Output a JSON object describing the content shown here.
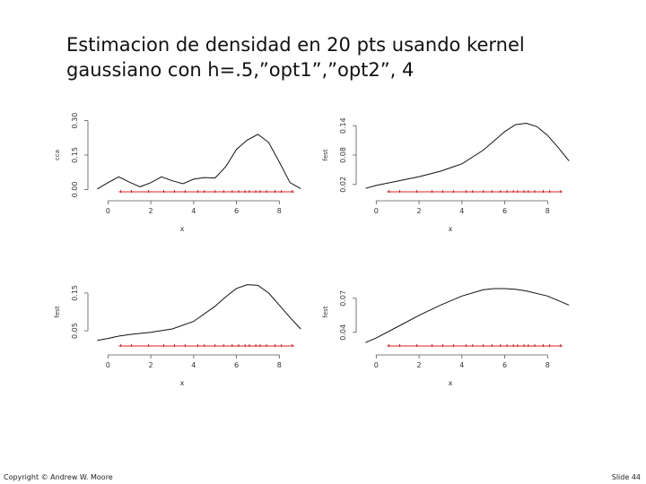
{
  "title": {
    "line1": "Estimacion de densidad en 20 pts usando kernel",
    "line2": "gaussiano con h=.5,”opt1”,”opt2”, 4"
  },
  "footer": {
    "copyright": "Copyright © Andrew W. Moore",
    "slide": "Slide 44"
  },
  "chart_data": [
    {
      "type": "line",
      "title": "",
      "xlabel": "x",
      "ylabel": "cca",
      "xlim": [
        -0.6,
        9.2
      ],
      "ylim": [
        -0.01,
        0.31
      ],
      "xticks": [
        0,
        2,
        4,
        6,
        8
      ],
      "yticks": [
        0.0,
        0.15,
        0.3
      ],
      "ytick_labels": [
        "0.00",
        "0.15",
        "0.30"
      ],
      "x": [
        -0.5,
        0.0,
        0.5,
        1.0,
        1.5,
        2.0,
        2.5,
        3.0,
        3.5,
        4.0,
        4.5,
        5.0,
        5.5,
        6.0,
        6.5,
        7.0,
        7.5,
        8.0,
        8.5,
        9.0
      ],
      "y": [
        0.002,
        0.03,
        0.055,
        0.032,
        0.012,
        0.03,
        0.055,
        0.038,
        0.025,
        0.045,
        0.052,
        0.05,
        0.1,
        0.175,
        0.215,
        0.24,
        0.205,
        0.12,
        0.03,
        0.004
      ],
      "rug": [
        0.6,
        1.1,
        1.9,
        2.6,
        3.1,
        3.6,
        4.2,
        4.5,
        5.0,
        5.4,
        5.8,
        6.1,
        6.4,
        6.6,
        6.9,
        7.1,
        7.4,
        7.8,
        8.1,
        8.6
      ],
      "rug_span": [
        0.5,
        8.7
      ]
    },
    {
      "type": "line",
      "title": "",
      "xlabel": "x",
      "ylabel": "fest",
      "xlim": [
        -0.6,
        9.2
      ],
      "ylim": [
        0.005,
        0.155
      ],
      "xticks": [
        0,
        2,
        4,
        6,
        8
      ],
      "yticks": [
        0.02,
        0.08,
        0.14
      ],
      "ytick_labels": [
        "0.02",
        "0.08",
        "0.14"
      ],
      "x": [
        -0.5,
        0.0,
        1.0,
        2.0,
        3.0,
        4.0,
        5.0,
        6.0,
        6.5,
        7.0,
        7.5,
        8.0,
        8.5,
        9.0
      ],
      "y": [
        0.012,
        0.018,
        0.027,
        0.036,
        0.047,
        0.062,
        0.09,
        0.128,
        0.142,
        0.145,
        0.138,
        0.12,
        0.095,
        0.068
      ],
      "rug": [
        0.6,
        1.1,
        1.9,
        2.6,
        3.1,
        3.6,
        4.2,
        4.5,
        5.0,
        5.4,
        5.8,
        6.1,
        6.4,
        6.6,
        6.9,
        7.1,
        7.4,
        7.8,
        8.1,
        8.6
      ],
      "rug_span": [
        0.5,
        8.7
      ]
    },
    {
      "type": "line",
      "title": "",
      "xlabel": "x",
      "ylabel": "fest",
      "xlim": [
        -0.6,
        9.2
      ],
      "ylim": [
        0.01,
        0.19
      ],
      "xticks": [
        0,
        2,
        4,
        6,
        8
      ],
      "yticks": [
        0.05,
        0.15
      ],
      "ytick_labels": [
        "0.05",
        "0.15"
      ],
      "x": [
        -0.5,
        0.0,
        0.5,
        1.0,
        2.0,
        3.0,
        4.0,
        5.0,
        5.5,
        6.0,
        6.5,
        7.0,
        7.5,
        8.0,
        8.5,
        9.0
      ],
      "y": [
        0.025,
        0.03,
        0.036,
        0.04,
        0.046,
        0.055,
        0.075,
        0.115,
        0.14,
        0.162,
        0.172,
        0.17,
        0.15,
        0.118,
        0.085,
        0.055
      ],
      "rug": [
        0.6,
        1.1,
        1.9,
        2.6,
        3.1,
        3.6,
        4.2,
        4.5,
        5.0,
        5.4,
        5.8,
        6.1,
        6.4,
        6.6,
        6.9,
        7.1,
        7.4,
        7.8,
        8.1,
        8.6
      ],
      "rug_span": [
        0.5,
        8.7
      ]
    },
    {
      "type": "line",
      "title": "",
      "xlabel": "x",
      "ylabel": "fest",
      "xlim": [
        -0.6,
        9.2
      ],
      "ylim": [
        0.028,
        0.088
      ],
      "xticks": [
        0,
        2,
        4,
        6,
        8
      ],
      "yticks": [
        0.04,
        0.07
      ],
      "ytick_labels": [
        "0.04",
        "0.07"
      ],
      "x": [
        -0.5,
        0.0,
        1.0,
        2.0,
        3.0,
        4.0,
        5.0,
        5.5,
        6.0,
        6.5,
        7.0,
        8.0,
        9.0
      ],
      "y": [
        0.031,
        0.035,
        0.045,
        0.055,
        0.064,
        0.072,
        0.0775,
        0.0785,
        0.0785,
        0.078,
        0.0765,
        0.072,
        0.064
      ],
      "rug": [
        0.6,
        1.1,
        1.9,
        2.6,
        3.1,
        3.6,
        4.2,
        4.5,
        5.0,
        5.4,
        5.8,
        6.1,
        6.4,
        6.6,
        6.9,
        7.1,
        7.4,
        7.8,
        8.1,
        8.6
      ],
      "rug_span": [
        0.5,
        8.7
      ]
    }
  ]
}
